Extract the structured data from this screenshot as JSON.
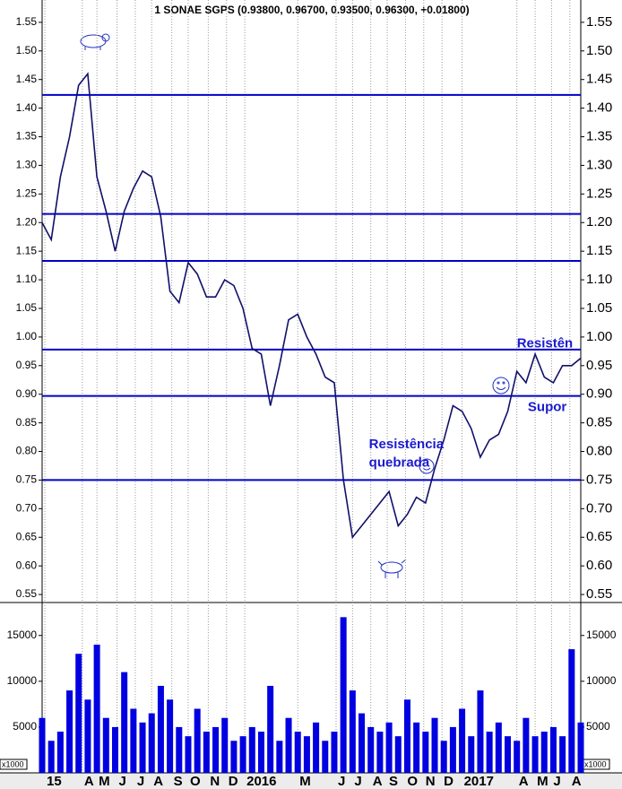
{
  "chart_data": [
    {
      "type": "line",
      "title": "1 SONAE SGPS (0.93800, 0.96700, 0.93500, 0.96300, +0.01800)",
      "xlim": [
        0,
        29.5
      ],
      "xticks": [
        {
          "value": 0.15,
          "label": "15"
        },
        {
          "value": 2.2,
          "label": "A"
        },
        {
          "value": 3.0,
          "label": "M"
        },
        {
          "value": 4.1,
          "label": "J"
        },
        {
          "value": 5.1,
          "label": "J"
        },
        {
          "value": 6.0,
          "label": "A"
        },
        {
          "value": 7.1,
          "label": "S"
        },
        {
          "value": 8.0,
          "label": "O"
        },
        {
          "value": 9.1,
          "label": "N"
        },
        {
          "value": 10.1,
          "label": "D"
        },
        {
          "value": 11.1,
          "label": "2016"
        },
        {
          "value": 14.0,
          "label": "M"
        },
        {
          "value": 16.1,
          "label": "J"
        },
        {
          "value": 17.0,
          "label": "J"
        },
        {
          "value": 18.0,
          "label": "A"
        },
        {
          "value": 18.9,
          "label": "S"
        },
        {
          "value": 19.9,
          "label": "O"
        },
        {
          "value": 20.9,
          "label": "N"
        },
        {
          "value": 21.9,
          "label": "D"
        },
        {
          "value": 23.0,
          "label": "2017"
        },
        {
          "value": 26.0,
          "label": "A"
        },
        {
          "value": 27.0,
          "label": "M"
        },
        {
          "value": 27.9,
          "label": "J"
        },
        {
          "value": 28.9,
          "label": "A"
        }
      ],
      "ylim": [
        0.536,
        1.589
      ],
      "yticks": [
        {
          "value": 0.55,
          "label": "0.55"
        },
        {
          "value": 0.6,
          "label": "0.60"
        },
        {
          "value": 0.65,
          "label": "0.65"
        },
        {
          "value": 0.7,
          "label": "0.70"
        },
        {
          "value": 0.75,
          "label": "0.75"
        },
        {
          "value": 0.8,
          "label": "0.80"
        },
        {
          "value": 0.85,
          "label": "0.85"
        },
        {
          "value": 0.9,
          "label": "0.90"
        },
        {
          "value": 0.95,
          "label": "0.95"
        },
        {
          "value": 1.0,
          "label": "1.00"
        },
        {
          "value": 1.05,
          "label": "1.05"
        },
        {
          "value": 1.1,
          "label": "1.10"
        },
        {
          "value": 1.15,
          "label": "1.15"
        },
        {
          "value": 1.2,
          "label": "1.20"
        },
        {
          "value": 1.25,
          "label": "1.25"
        },
        {
          "value": 1.3,
          "label": "1.30"
        },
        {
          "value": 1.35,
          "label": "1.35"
        },
        {
          "value": 1.4,
          "label": "1.40"
        },
        {
          "value": 1.45,
          "label": "1.45"
        },
        {
          "value": 1.5,
          "label": "1.50"
        },
        {
          "value": 1.55,
          "label": "1.55"
        }
      ],
      "x": [
        0,
        0.5,
        1,
        1.5,
        2,
        2.5,
        3,
        3.5,
        4,
        4.5,
        5,
        5.5,
        6,
        6.5,
        7,
        7.5,
        8,
        8.5,
        9,
        9.5,
        10,
        10.5,
        11,
        11.5,
        12,
        12.5,
        13,
        13.5,
        14,
        14.5,
        15,
        15.5,
        16,
        16.5,
        17,
        17.5,
        18,
        18.5,
        19,
        19.5,
        20,
        20.5,
        21,
        21.5,
        22,
        22.5,
        23,
        23.5,
        24,
        24.5,
        25,
        25.5,
        26,
        26.5,
        27,
        27.5,
        28,
        28.5,
        29,
        29.5
      ],
      "series": [
        {
          "name": "SONAE SGPS",
          "color": "#10106a",
          "values": [
            1.2,
            1.17,
            1.28,
            1.35,
            1.44,
            1.46,
            1.28,
            1.22,
            1.15,
            1.22,
            1.26,
            1.29,
            1.28,
            1.21,
            1.08,
            1.06,
            1.13,
            1.11,
            1.07,
            1.07,
            1.1,
            1.09,
            1.05,
            0.98,
            0.97,
            0.88,
            0.95,
            1.03,
            1.04,
            1.0,
            0.97,
            0.93,
            0.92,
            0.75,
            0.65,
            0.67,
            0.69,
            0.71,
            0.73,
            0.67,
            0.69,
            0.72,
            0.71,
            0.77,
            0.82,
            0.88,
            0.87,
            0.84,
            0.79,
            0.82,
            0.83,
            0.87,
            0.94,
            0.92,
            0.97,
            0.93,
            0.92,
            0.95,
            0.95,
            0.963
          ]
        }
      ],
      "hlines": [
        1.423,
        1.215,
        1.133,
        0.978,
        0.897,
        0.75
      ],
      "hline_color": "#0000c8",
      "annotations": [
        {
          "text": "Resistência",
          "x": 17.9,
          "y": 0.812
        },
        {
          "text": "quebrada",
          "x": 17.9,
          "y": 0.78
        },
        {
          "text": "Resistên",
          "x": 26.0,
          "y": 0.988
        },
        {
          "text": "Supor",
          "x": 26.6,
          "y": 0.877
        }
      ],
      "annotation_color": "#1a1ad0",
      "grid": true
    },
    {
      "type": "bar",
      "unit": "x1000",
      "ylim": [
        0,
        18600
      ],
      "yticks": [
        5000,
        10000,
        15000
      ],
      "x": [
        0,
        0.5,
        1,
        1.5,
        2,
        2.5,
        3,
        3.5,
        4,
        4.5,
        5,
        5.5,
        6,
        6.5,
        7,
        7.5,
        8,
        8.5,
        9,
        9.5,
        10,
        10.5,
        11,
        11.5,
        12,
        12.5,
        13,
        13.5,
        14,
        14.5,
        15,
        15.5,
        16,
        16.5,
        17,
        17.5,
        18,
        18.5,
        19,
        19.5,
        20,
        20.5,
        21,
        21.5,
        22,
        22.5,
        23,
        23.5,
        24,
        24.5,
        25,
        25.5,
        26,
        26.5,
        27,
        27.5,
        28,
        28.5,
        29,
        29.5
      ],
      "values": [
        6000,
        3500,
        4500,
        9000,
        13000,
        8000,
        14000,
        6000,
        5000,
        11000,
        7000,
        5500,
        6500,
        9500,
        8000,
        5000,
        4000,
        7000,
        4500,
        5000,
        6000,
        3500,
        4000,
        5000,
        4500,
        9500,
        3500,
        6000,
        4500,
        4000,
        5500,
        3500,
        4500,
        17000,
        9000,
        6500,
        5000,
        4500,
        5500,
        4000,
        8000,
        5500,
        4500,
        6000,
        3500,
        5000,
        7000,
        4000,
        9000,
        4500,
        5500,
        4000,
        3500,
        6000,
        4000,
        4500,
        5000,
        4000,
        13500,
        5500
      ],
      "color": "#0000e0"
    }
  ]
}
